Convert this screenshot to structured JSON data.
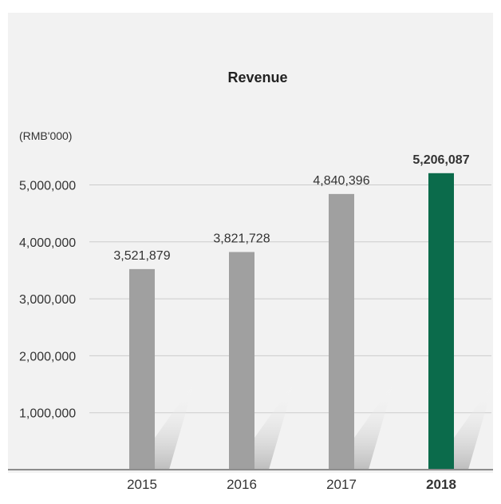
{
  "chart_data": {
    "type": "bar",
    "title": "Revenue",
    "unit_label": "(RMB'000)",
    "categories": [
      "2015",
      "2016",
      "2017",
      "2018"
    ],
    "values": [
      3521879,
      3821728,
      4840396,
      5206087
    ],
    "value_labels": [
      "3,521,879",
      "3,821,728",
      "4,840,396",
      "5,206,087"
    ],
    "highlight_category": "2018",
    "y_ticks": [
      1000000,
      2000000,
      3000000,
      4000000,
      5000000
    ],
    "y_tick_labels": [
      "1,000,000",
      "2,000,000",
      "3,000,000",
      "4,000,000",
      "5,000,000"
    ],
    "ylim": [
      0,
      5500000
    ],
    "grid": true,
    "colors": {
      "background": "#ffffff",
      "panel": "#f2f2f2",
      "bar": "#a0a0a0",
      "highlight_bar": "#0b6b4b",
      "grid": "#cccccc",
      "baseline": "#8c8c8c",
      "text": "#333333",
      "shadow": "#cfcfcf"
    }
  }
}
